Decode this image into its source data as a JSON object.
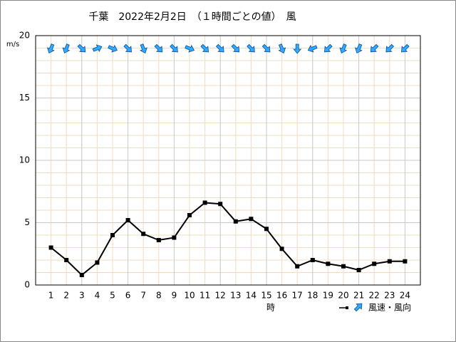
{
  "chart_data": {
    "type": "line",
    "title": "千葉　2022年2月2日　（１時間ごとの値）　風",
    "y_label": "m/s",
    "x_label": "時",
    "x": [
      1,
      2,
      3,
      4,
      5,
      6,
      7,
      8,
      9,
      10,
      11,
      12,
      13,
      14,
      15,
      16,
      17,
      18,
      19,
      20,
      21,
      22,
      23,
      24
    ],
    "series": [
      {
        "name": "風速・風向",
        "color": "#000000",
        "values": [
          3.0,
          2.0,
          0.8,
          1.8,
          4.0,
          5.2,
          4.1,
          3.6,
          3.8,
          5.6,
          6.6,
          6.5,
          5.1,
          5.3,
          4.5,
          2.9,
          1.5,
          2.0,
          1.7,
          1.5,
          1.2,
          1.7,
          1.9,
          1.9
        ],
        "direction_from_deg": [
          22.5,
          22.5,
          315,
          247.5,
          292.5,
          315,
          337.5,
          315,
          315,
          292.5,
          315,
          315,
          315,
          315,
          315,
          337.5,
          0,
          67.5,
          45,
          22.5,
          22.5,
          45,
          45,
          45
        ],
        "arrow_color": "#33aaff"
      }
    ],
    "xlim": [
      0,
      25
    ],
    "xticks": [
      1,
      2,
      3,
      4,
      5,
      6,
      7,
      8,
      9,
      10,
      11,
      12,
      13,
      14,
      15,
      16,
      17,
      18,
      19,
      20,
      21,
      22,
      23,
      24
    ],
    "ylim": [
      0,
      20
    ],
    "yticks": [
      0,
      5,
      10,
      15,
      20
    ],
    "grid": true,
    "minor_grid_step": 1,
    "xgrid_major_step": 3
  }
}
